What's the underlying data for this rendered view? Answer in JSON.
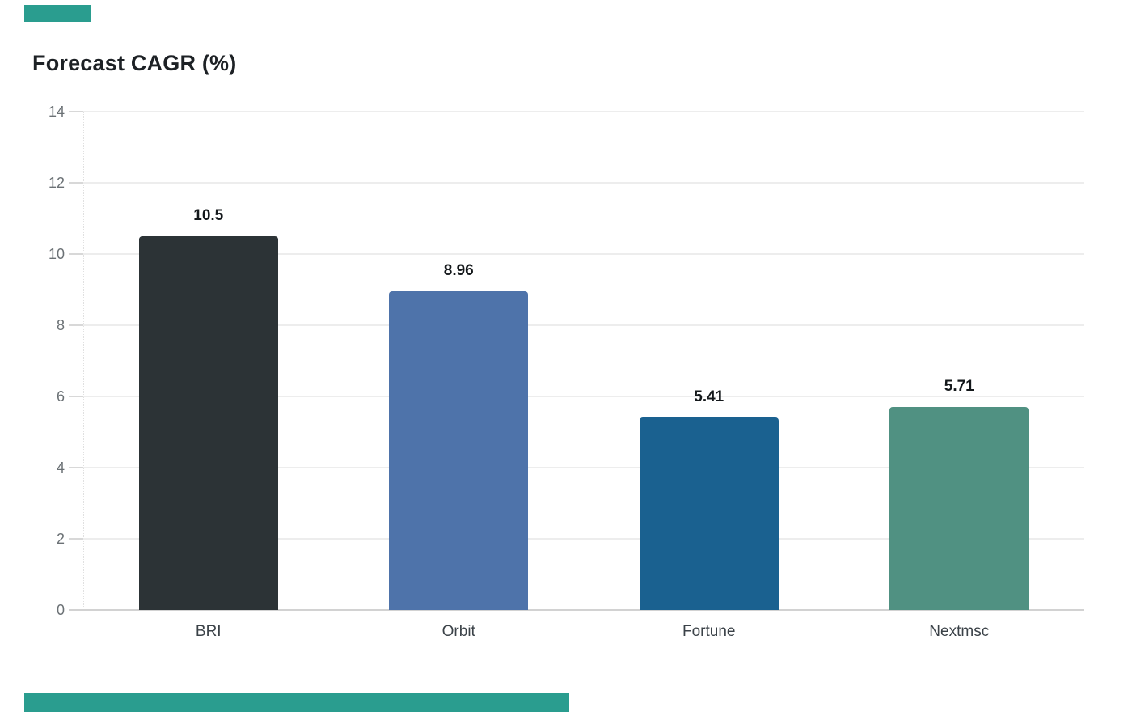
{
  "page": {
    "background": "#ffffff"
  },
  "title": {
    "text": "Forecast CAGR (%)",
    "color": "#1d2125"
  },
  "accents": {
    "color": "#2a9d8f"
  },
  "colors": {
    "grid_line": "#ededed",
    "axis_line": "#d2d2d2",
    "tick_mark": "#d8d8d8",
    "y_tick_label": "#6b7175",
    "x_category_label": "#3b4248",
    "value_label": "#14181b",
    "background": "#ffffff"
  },
  "chart_data": {
    "type": "bar",
    "title": "Forecast CAGR (%)",
    "categories": [
      "BRI",
      "Orbit",
      "Fortune",
      "Nextmsc"
    ],
    "values": [
      10.5,
      8.96,
      5.41,
      5.71
    ],
    "value_labels": [
      "10.5",
      "8.96",
      "5.41",
      "5.71"
    ],
    "bar_colors": [
      "#2c3336",
      "#4e73aa",
      "#1a6190",
      "#509182"
    ],
    "xlabel": "",
    "ylabel": "",
    "ylim": [
      0,
      14
    ],
    "yticks": [
      0,
      2,
      4,
      6,
      8,
      10,
      12,
      14
    ],
    "grid": "horizontal gridlines on",
    "legend": "none"
  }
}
